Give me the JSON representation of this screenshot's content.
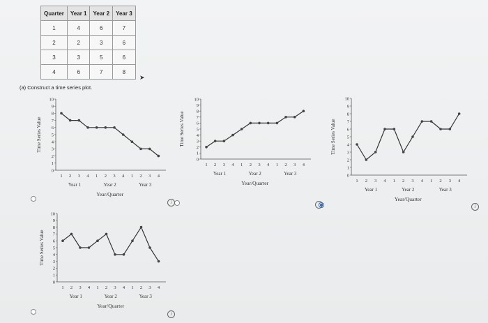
{
  "table": {
    "headers": [
      "Quarter",
      "Year 1",
      "Year 2",
      "Year 3"
    ],
    "rows": [
      [
        "1",
        "4",
        "6",
        "7"
      ],
      [
        "2",
        "2",
        "3",
        "6"
      ],
      [
        "3",
        "3",
        "5",
        "6"
      ],
      [
        "4",
        "6",
        "7",
        "8"
      ]
    ]
  },
  "prompt": "(a) Construct a time series plot.",
  "chart_data": [
    {
      "type": "line",
      "option": "A",
      "ylabel": "Time Series Value",
      "xlabel": "Year/Quarter",
      "ylim": [
        0,
        10
      ],
      "yticks": [
        0,
        1,
        2,
        3,
        4,
        5,
        6,
        7,
        8,
        9,
        10
      ],
      "quarter_ticks": [
        "1",
        "2",
        "3",
        "4",
        "1",
        "2",
        "3",
        "4",
        "1",
        "2",
        "3",
        "4"
      ],
      "year_labels": [
        "Year 1",
        "Year 2",
        "Year 3"
      ],
      "values": [
        8,
        7,
        7,
        6,
        6,
        6,
        6,
        5,
        4,
        3,
        3,
        2
      ]
    },
    {
      "type": "line",
      "option": "B",
      "ylabel": "Time Series Value",
      "xlabel": "Year/Quarter",
      "ylim": [
        0,
        10
      ],
      "yticks": [
        0,
        1,
        2,
        3,
        4,
        5,
        6,
        7,
        8,
        9,
        10
      ],
      "quarter_ticks": [
        "1",
        "2",
        "3",
        "4",
        "1",
        "2",
        "3",
        "4",
        "1",
        "2",
        "3",
        "4"
      ],
      "year_labels": [
        "Year 1",
        "Year 2",
        "Year 3"
      ],
      "values": [
        2,
        3,
        3,
        4,
        5,
        6,
        6,
        6,
        6,
        7,
        7,
        8
      ]
    },
    {
      "type": "line",
      "option": "C",
      "ylabel": "Time Series Value",
      "xlabel": "Year/Quarter",
      "ylim": [
        0,
        10
      ],
      "yticks": [
        0,
        1,
        2,
        3,
        4,
        5,
        6,
        7,
        8,
        9,
        10
      ],
      "quarter_ticks": [
        "1",
        "2",
        "3",
        "4",
        "1",
        "2",
        "3",
        "4",
        "1",
        "2",
        "3",
        "4"
      ],
      "year_labels": [
        "Year 1",
        "Year 2",
        "Year 3"
      ],
      "values": [
        4,
        2,
        3,
        6,
        6,
        3,
        5,
        7,
        7,
        6,
        6,
        8
      ]
    },
    {
      "type": "line",
      "option": "D",
      "ylabel": "Time Series Value",
      "xlabel": "Year/Quarter",
      "ylim": [
        0,
        10
      ],
      "yticks": [
        0,
        1,
        2,
        3,
        4,
        5,
        6,
        7,
        8,
        9,
        10
      ],
      "quarter_ticks": [
        "1",
        "2",
        "3",
        "4",
        "1",
        "2",
        "3",
        "4",
        "1",
        "2",
        "3",
        "4"
      ],
      "year_labels": [
        "Year 1",
        "Year 2",
        "Year 3"
      ],
      "values": [
        6,
        7,
        5,
        5,
        6,
        7,
        4,
        4,
        6,
        8,
        5,
        3
      ]
    }
  ],
  "options": {
    "selected": "B",
    "info_glyph": "i"
  },
  "colors": {
    "line": "#333333",
    "marker": "#444444",
    "selected": "#2d6cc0"
  }
}
